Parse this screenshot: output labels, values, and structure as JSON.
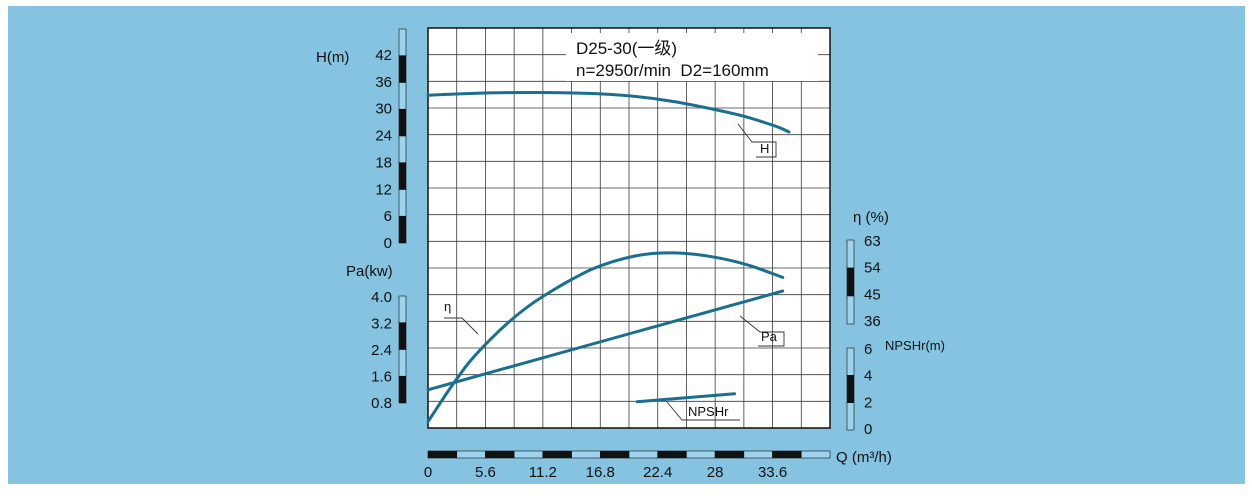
{
  "colors": {
    "background": "#86c3e1",
    "plot_bg": "#ffffff",
    "grid": "#3a3a3a",
    "curve": "#1a6e8e",
    "scale_dark": "#111111",
    "scale_light": "#9fd3ec"
  },
  "chart_data": {
    "type": "line",
    "title": "D25-30(一级)",
    "subtitle": "n=2950r/min  D2=160mm",
    "xlabel": "Q (m³/h)",
    "x_ticks": [
      "0",
      "5.6",
      "11.2",
      "16.8",
      "22.4",
      "28",
      "33.6"
    ],
    "xlim": [
      0,
      39.2
    ],
    "axes": {
      "head": {
        "label": "H(m)",
        "ticks": [
          "0",
          "6",
          "12",
          "18",
          "24",
          "30",
          "36",
          "42"
        ],
        "range": [
          0,
          45
        ]
      },
      "power": {
        "label": "Pa(kw)",
        "ticks": [
          "0.8",
          "1.6",
          "2.4",
          "3.2",
          "4.0"
        ],
        "range": [
          0,
          4.8
        ]
      },
      "efficiency": {
        "label": "η (%)",
        "ticks": [
          "36",
          "45",
          "54",
          "63"
        ],
        "range": [
          0,
          63
        ]
      },
      "npshr": {
        "label": "NPSHr(m)",
        "ticks": [
          "0",
          "2",
          "4",
          "6"
        ],
        "range": [
          0,
          6
        ]
      }
    },
    "series": [
      {
        "name": "H",
        "axis": "head",
        "x": [
          0,
          4,
          8,
          12,
          16,
          20,
          24,
          28,
          31,
          34,
          35.2
        ],
        "y": [
          33.0,
          33.4,
          33.6,
          33.6,
          33.4,
          32.8,
          31.6,
          29.8,
          28.2,
          26.0,
          24.8
        ]
      },
      {
        "name": "η",
        "axis": "efficiency",
        "x": [
          0,
          2,
          4,
          6,
          8,
          10,
          12,
          14,
          16,
          18,
          20,
          22,
          24,
          26,
          28,
          30,
          32,
          34.6
        ],
        "y": [
          2,
          12.5,
          22,
          29.5,
          36,
          41.5,
          46,
          50,
          53.5,
          56,
          57.8,
          58.8,
          59,
          58.5,
          57.5,
          56,
          54,
          50.7
        ]
      },
      {
        "name": "Pa",
        "axis": "power",
        "x": [
          0,
          34.6
        ],
        "y": [
          1.2,
          4.18
        ]
      },
      {
        "name": "NPSHr",
        "axis": "npshr",
        "x": [
          20.4,
          29.9
        ],
        "y": [
          2.05,
          2.65
        ]
      }
    ]
  }
}
